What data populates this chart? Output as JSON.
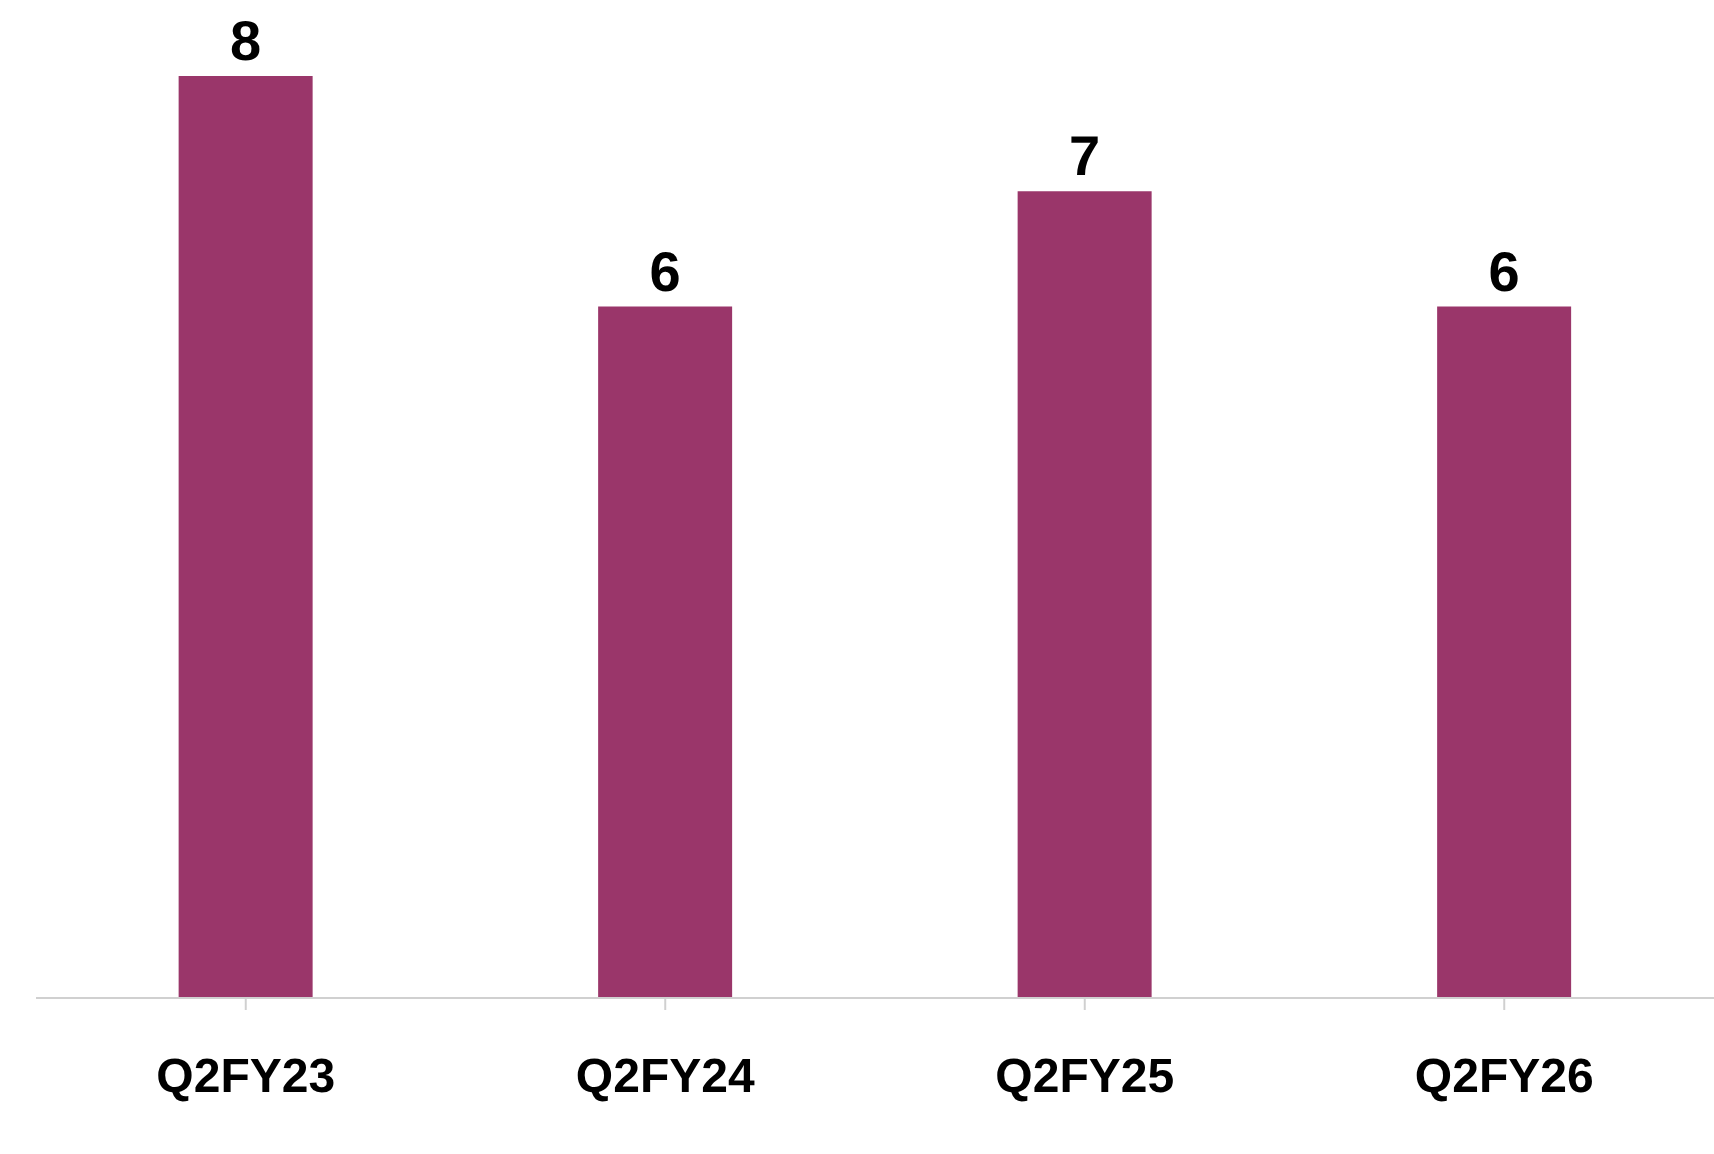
{
  "chart_data": {
    "type": "bar",
    "categories": [
      "Q2FY23",
      "Q2FY24",
      "Q2FY25",
      "Q2FY26"
    ],
    "values": [
      8,
      6,
      7,
      6
    ],
    "color": "#9a366a",
    "data_labels": true
  }
}
